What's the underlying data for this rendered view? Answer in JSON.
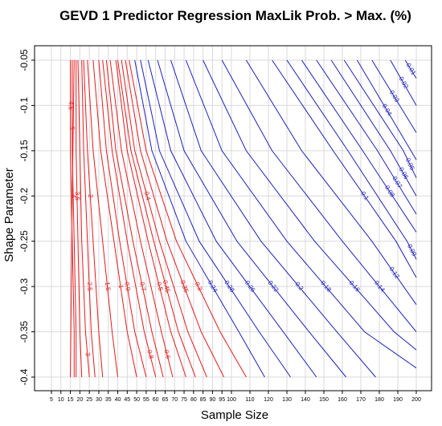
{
  "chart_data": {
    "type": "line",
    "title": "GEVD 1 Predictor Regression MaxLik Prob. > Max. (%)",
    "xlabel": "Sample Size",
    "ylabel": "Shape Parameter",
    "xticks": [
      5,
      10,
      15,
      20,
      25,
      30,
      35,
      40,
      45,
      50,
      55,
      60,
      65,
      70,
      75,
      80,
      85,
      90,
      95,
      100,
      110,
      120,
      130,
      140,
      150,
      160,
      170,
      180,
      190,
      200
    ],
    "xtick_labels": [
      "5",
      "10",
      "15",
      "20",
      "25",
      "30",
      "35",
      "40",
      "45",
      "50",
      "55",
      "60",
      "65",
      "70",
      "75",
      "80",
      "85",
      "90",
      "95",
      "100",
      "110",
      "120",
      "130",
      "140",
      "150",
      "160",
      "170",
      "180",
      "190",
      "200"
    ],
    "yticks": [
      -0.05,
      -0.1,
      -0.15,
      -0.2,
      -0.25,
      -0.3,
      -0.35,
      -0.4
    ],
    "ytick_labels": [
      "-0.05",
      "-0.1",
      "-0.15",
      "-0.2",
      "-0.25",
      "-0.3",
      "-0.35",
      "-0.4"
    ],
    "ylim": [
      -0.4,
      -0.05
    ],
    "grid": true,
    "colors": {
      "low_levels": "#e41a1c",
      "high_levels": "#1f1fbf"
    },
    "series": [
      {
        "name": "4.5",
        "color": "#e41a1c",
        "label_at": 1,
        "points": [
          [
            15,
            -0.05
          ],
          [
            15,
            -0.15
          ],
          [
            16,
            -0.25
          ],
          [
            17,
            -0.35
          ],
          [
            17,
            -0.4
          ]
        ]
      },
      {
        "name": "4",
        "color": "#e41a1c",
        "label_at": 2,
        "points": [
          [
            16,
            -0.05
          ],
          [
            16,
            -0.15
          ],
          [
            17,
            -0.25
          ],
          [
            18,
            -0.35
          ],
          [
            18,
            -0.4
          ]
        ]
      },
      {
        "name": "5",
        "color": "#e41a1c",
        "label_at": 1,
        "points": [
          [
            17,
            -0.05
          ],
          [
            16,
            -0.2
          ],
          [
            15,
            -0.4
          ]
        ]
      },
      {
        "name": "3.5",
        "color": "#e41a1c",
        "label_at": 2,
        "points": [
          [
            18,
            -0.05
          ],
          [
            18,
            -0.15
          ],
          [
            19,
            -0.25
          ],
          [
            20,
            -0.35
          ],
          [
            21,
            -0.4
          ]
        ]
      },
      {
        "name": "3",
        "color": "#e41a1c",
        "label_at": 4,
        "points": [
          [
            19,
            -0.05
          ],
          [
            20,
            -0.15
          ],
          [
            21,
            -0.25
          ],
          [
            23,
            -0.35
          ],
          [
            25,
            -0.4
          ]
        ]
      },
      {
        "name": "2.5",
        "color": "#e41a1c",
        "label_at": 3,
        "points": [
          [
            21,
            -0.05
          ],
          [
            22,
            -0.15
          ],
          [
            24,
            -0.25
          ],
          [
            26,
            -0.35
          ],
          [
            28,
            -0.4
          ]
        ]
      },
      {
        "name": "2",
        "color": "#e41a1c",
        "label_at": 2,
        "points": [
          [
            22,
            -0.05
          ],
          [
            24,
            -0.15
          ],
          [
            27,
            -0.25
          ],
          [
            30,
            -0.35
          ],
          [
            32,
            -0.4
          ]
        ]
      },
      {
        "name": "1.5",
        "color": "#e41a1c",
        "label_at": 3,
        "points": [
          [
            24,
            -0.05
          ],
          [
            27,
            -0.15
          ],
          [
            32,
            -0.25
          ],
          [
            37,
            -0.35
          ],
          [
            40,
            -0.4
          ]
        ]
      },
      {
        "name": "1",
        "color": "#e41a1c",
        "label_at": 3,
        "points": [
          [
            27,
            -0.05
          ],
          [
            31,
            -0.15
          ],
          [
            38,
            -0.25
          ],
          [
            45,
            -0.35
          ],
          [
            50,
            -0.4
          ]
        ]
      },
      {
        "name": "0.9",
        "color": "#e41a1c",
        "label_at": 3,
        "points": [
          [
            30,
            -0.05
          ],
          [
            34,
            -0.15
          ],
          [
            41,
            -0.25
          ],
          [
            49,
            -0.35
          ],
          [
            55,
            -0.4
          ]
        ]
      },
      {
        "name": "0.8",
        "color": "#e41a1c",
        "label_at": 4,
        "points": [
          [
            32,
            -0.05
          ],
          [
            37,
            -0.15
          ],
          [
            45,
            -0.25
          ],
          [
            54,
            -0.35
          ],
          [
            60,
            -0.4
          ]
        ]
      },
      {
        "name": "0.7",
        "color": "#e41a1c",
        "label_at": 3,
        "points": [
          [
            34,
            -0.05
          ],
          [
            39,
            -0.15
          ],
          [
            48,
            -0.25
          ],
          [
            58,
            -0.35
          ],
          [
            64,
            -0.4
          ]
        ]
      },
      {
        "name": "0.6",
        "color": "#e41a1c",
        "label_at": 4,
        "points": [
          [
            36,
            -0.05
          ],
          [
            42,
            -0.15
          ],
          [
            52,
            -0.25
          ],
          [
            63,
            -0.35
          ],
          [
            69,
            -0.4
          ]
        ]
      },
      {
        "name": "0.5",
        "color": "#e41a1c",
        "label_at": 3,
        "points": [
          [
            39,
            -0.05
          ],
          [
            45,
            -0.15
          ],
          [
            56,
            -0.25
          ],
          [
            68,
            -0.35
          ],
          [
            76,
            -0.4
          ]
        ]
      },
      {
        "name": "0.45",
        "color": "#e41a1c",
        "label_at": 3,
        "points": [
          [
            40,
            -0.05
          ],
          [
            47,
            -0.15
          ],
          [
            59,
            -0.25
          ],
          [
            72,
            -0.35
          ],
          [
            81,
            -0.4
          ]
        ]
      },
      {
        "name": "0.4",
        "color": "#e41a1c",
        "label_at": 2,
        "points": [
          [
            42,
            -0.05
          ],
          [
            49,
            -0.15
          ],
          [
            62,
            -0.25
          ],
          [
            77,
            -0.35
          ],
          [
            87,
            -0.4
          ]
        ]
      },
      {
        "name": "0.35",
        "color": "#e41a1c",
        "label_at": 3,
        "points": [
          [
            44,
            -0.05
          ],
          [
            52,
            -0.15
          ],
          [
            66,
            -0.25
          ],
          [
            84,
            -0.35
          ],
          [
            96,
            -0.4
          ]
        ]
      },
      {
        "name": "0.3",
        "color": "#e41a1c",
        "label_at": 3,
        "points": [
          [
            46,
            -0.05
          ],
          [
            55,
            -0.15
          ],
          [
            71,
            -0.25
          ],
          [
            94,
            -0.35
          ],
          [
            108,
            -0.4
          ]
        ]
      },
      {
        "name": "0.24",
        "color": "#1f1fbf",
        "label_at": 3,
        "points": [
          [
            49,
            -0.05
          ],
          [
            58,
            -0.15
          ],
          [
            76,
            -0.25
          ],
          [
            104,
            -0.35
          ],
          [
            118,
            -0.4
          ]
        ]
      },
      {
        "name": "0.28",
        "color": "#1f1fbf",
        "label_at": 3,
        "points": [
          [
            52,
            -0.05
          ],
          [
            62,
            -0.15
          ],
          [
            83,
            -0.25
          ],
          [
            115,
            -0.35
          ],
          [
            132,
            -0.4
          ]
        ]
      },
      {
        "name": "0.26",
        "color": "#1f1fbf",
        "label_at": 3,
        "points": [
          [
            56,
            -0.05
          ],
          [
            68,
            -0.15
          ],
          [
            92,
            -0.25
          ],
          [
            128,
            -0.35
          ],
          [
            146,
            -0.4
          ]
        ]
      },
      {
        "name": "0.22",
        "color": "#1f1fbf",
        "label_at": 3,
        "points": [
          [
            61,
            -0.05
          ],
          [
            75,
            -0.15
          ],
          [
            103,
            -0.25
          ],
          [
            142,
            -0.35
          ],
          [
            162,
            -0.4
          ]
        ]
      },
      {
        "name": "0.2",
        "color": "#1f1fbf",
        "label_at": 3,
        "points": [
          [
            68,
            -0.05
          ],
          [
            84,
            -0.15
          ],
          [
            116,
            -0.25
          ],
          [
            157,
            -0.35
          ],
          [
            178,
            -0.4
          ]
        ]
      },
      {
        "name": "0.18",
        "color": "#1f1fbf",
        "label_at": 3,
        "points": [
          [
            76,
            -0.05
          ],
          [
            95,
            -0.15
          ],
          [
            130,
            -0.25
          ],
          [
            172,
            -0.35
          ],
          [
            200,
            -0.39
          ]
        ]
      },
      {
        "name": "0.16",
        "color": "#1f1fbf",
        "label_at": 3,
        "points": [
          [
            85,
            -0.05
          ],
          [
            108,
            -0.15
          ],
          [
            145,
            -0.25
          ],
          [
            188,
            -0.35
          ],
          [
            200,
            -0.37
          ]
        ]
      },
      {
        "name": "0.14",
        "color": "#1f1fbf",
        "label_at": 3,
        "points": [
          [
            95,
            -0.05
          ],
          [
            122,
            -0.15
          ],
          [
            160,
            -0.25
          ],
          [
            200,
            -0.35
          ]
        ]
      },
      {
        "name": "0.12",
        "color": "#1f1fbf",
        "label_at": 3,
        "points": [
          [
            108,
            -0.05
          ],
          [
            138,
            -0.15
          ],
          [
            176,
            -0.25
          ],
          [
            200,
            -0.32
          ]
        ]
      },
      {
        "name": "0.1",
        "color": "#1f1fbf",
        "label_at": 2,
        "points": [
          [
            122,
            -0.05
          ],
          [
            155,
            -0.15
          ],
          [
            189,
            -0.25
          ],
          [
            200,
            -0.29
          ]
        ]
      },
      {
        "name": "0.09",
        "color": "#1f1fbf",
        "label_at": 3,
        "points": [
          [
            130,
            -0.05
          ],
          [
            163,
            -0.15
          ],
          [
            195,
            -0.25
          ],
          [
            200,
            -0.27
          ]
        ]
      },
      {
        "name": "0.08",
        "color": "#1f1fbf",
        "label_at": 3,
        "points": [
          [
            138,
            -0.05
          ],
          [
            171,
            -0.15
          ],
          [
            200,
            -0.24
          ]
        ]
      },
      {
        "name": "0.07",
        "color": "#1f1fbf",
        "label_at": 2,
        "points": [
          [
            146,
            -0.05
          ],
          [
            179,
            -0.15
          ],
          [
            200,
            -0.22
          ]
        ]
      },
      {
        "name": "0.06",
        "color": "#1f1fbf",
        "label_at": 2,
        "points": [
          [
            154,
            -0.05
          ],
          [
            186,
            -0.15
          ],
          [
            200,
            -0.2
          ]
        ]
      },
      {
        "name": "0.05",
        "color": "#1f1fbf",
        "label_at": 2,
        "points": [
          [
            161,
            -0.05
          ],
          [
            193,
            -0.15
          ],
          [
            200,
            -0.18
          ]
        ]
      },
      {
        "name": "0.04",
        "color": "#1f1fbf",
        "label_at": 2,
        "points": [
          [
            168,
            -0.05
          ],
          [
            200,
            -0.16
          ]
        ]
      },
      {
        "name": "0.03",
        "color": "#1f1fbf",
        "label_at": 1,
        "points": [
          [
            176,
            -0.05
          ],
          [
            200,
            -0.13
          ]
        ]
      },
      {
        "name": "0.02",
        "color": "#1f1fbf",
        "label_at": 1,
        "points": [
          [
            186,
            -0.05
          ],
          [
            200,
            -0.1
          ]
        ]
      },
      {
        "name": "0.01",
        "color": "#1f1fbf",
        "label_at": 1,
        "points": [
          [
            194,
            -0.05
          ],
          [
            200,
            -0.07
          ]
        ]
      }
    ]
  }
}
